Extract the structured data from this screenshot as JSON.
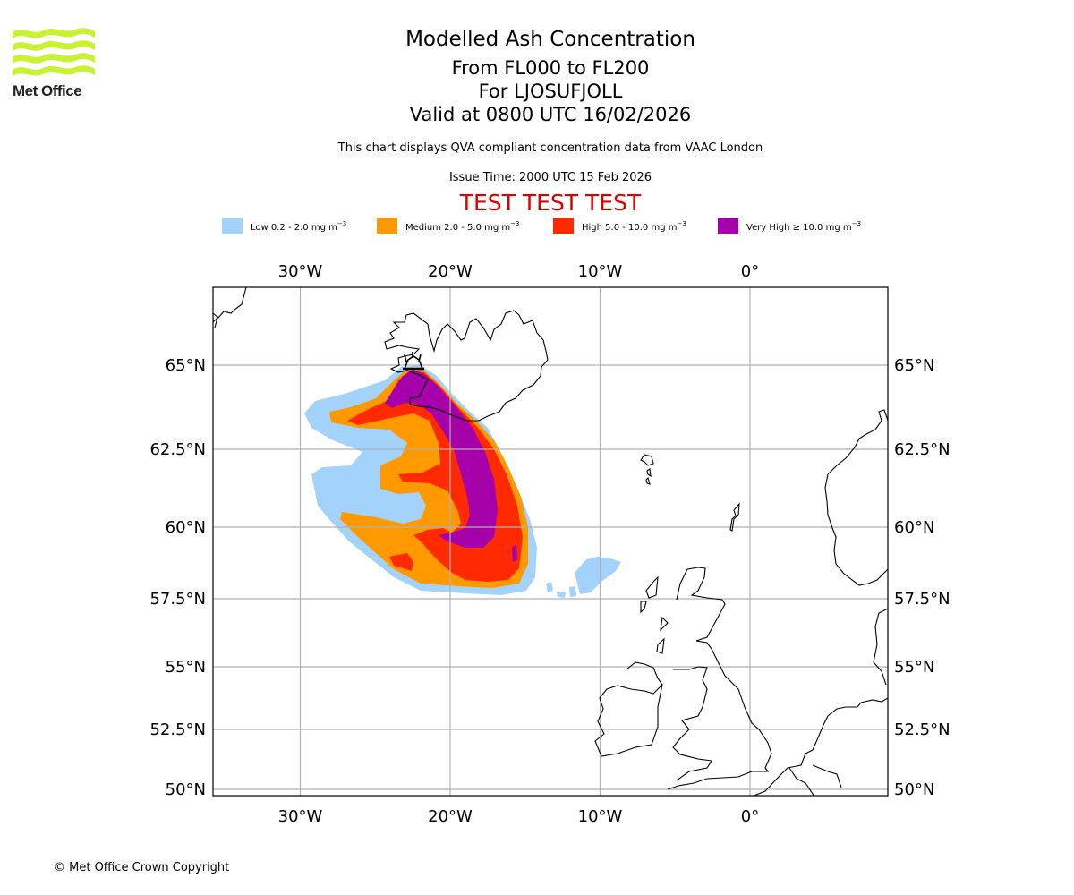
{
  "logo": {
    "text": "Met Office",
    "color": "#c8f232"
  },
  "header": {
    "title": "Modelled Ash Concentration",
    "level_range": "From FL000 to FL200",
    "volcano": "For LJOSUFJOLL",
    "valid_time": "Valid at 0800 UTC 16/02/2026",
    "description": "This chart displays QVA compliant concentration data from VAAC London",
    "issue_time": "Issue Time: 2000 UTC 15 Feb 2026",
    "test_banner": "TEST TEST TEST",
    "test_color": "#dd0000"
  },
  "legend": [
    {
      "label": "Low 0.2 - 2.0 mg m",
      "exp": "−3",
      "color": "#a3d3fb",
      "range_mg_m3": [
        0.2,
        2.0
      ]
    },
    {
      "label": "Medium 2.0 - 5.0 mg m",
      "exp": "−3",
      "color": "#ff9900",
      "range_mg_m3": [
        2.0,
        5.0
      ]
    },
    {
      "label": "High 5.0 - 10.0 mg m",
      "exp": "−3",
      "color": "#ff2a00",
      "range_mg_m3": [
        5.0,
        10.0
      ]
    },
    {
      "label": "Very High ≥ 10.0 mg m",
      "exp": "−3",
      "color": "#a600aa",
      "range_mg_m3": [
        10.0,
        null
      ]
    }
  ],
  "map": {
    "lon_range": [
      -35.8,
      9.2
    ],
    "lat_range": [
      49.8,
      66.5
    ],
    "lon_ticks": [
      {
        "value": -30,
        "label": "30°W"
      },
      {
        "value": -20,
        "label": "20°W"
      },
      {
        "value": -10,
        "label": "10°W"
      },
      {
        "value": 0,
        "label": "0°"
      }
    ],
    "lat_ticks": [
      {
        "value": 65,
        "label": "65°N"
      },
      {
        "value": 62.5,
        "label": "62.5°N"
      },
      {
        "value": 60,
        "label": "60°N"
      },
      {
        "value": 57.5,
        "label": "57.5°N"
      },
      {
        "value": 55,
        "label": "55°N"
      },
      {
        "value": 52.5,
        "label": "52.5°N"
      },
      {
        "value": 50,
        "label": "50°N"
      }
    ],
    "grid": true,
    "source_volcano": "LJOSUFJOLL"
  },
  "footer": {
    "copyright": "© Met Office Crown Copyright"
  }
}
